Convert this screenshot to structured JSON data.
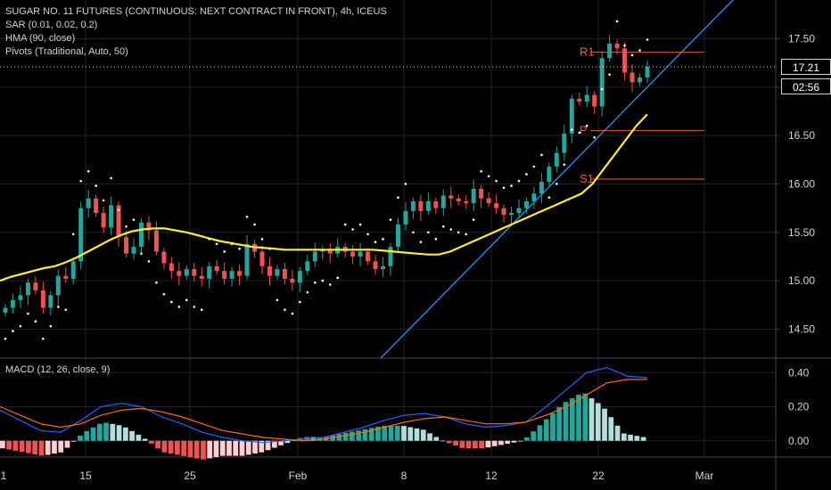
{
  "legend": {
    "title": "SUGAR NO. 11 FUTURES (CONTINUOUS: NEXT CONTRACT IN FRONT), 4h, ICEUS",
    "sar": "SAR (0.01, 0.02, 0.2)",
    "hma": "HMA (90, close)",
    "pivots": "Pivots (Traditional, Auto, 50)"
  },
  "macd_label": "MACD (12, 26, close, 9)",
  "price_axis_labels": [
    "17.50",
    "17.00",
    "16.50",
    "16.00",
    "15.50",
    "15.00",
    "14.50"
  ],
  "macd_axis_labels": [
    "0.40",
    "0.20",
    "0.00"
  ],
  "time_axis_labels": [
    "1",
    "15",
    "25",
    "Feb",
    "8",
    "12",
    "22",
    "Mar"
  ],
  "last_price": "17.21",
  "countdown": "02:56",
  "pivot_labels": [
    "R1",
    "P",
    "S1"
  ],
  "colors": {
    "up": "#26a69a",
    "down": "#ef5350",
    "hma": "#ffeb3b",
    "trendline": "#2196f3",
    "macd": "#2962ff",
    "signal": "#ff6d00",
    "pivot": "#e0633d"
  },
  "chart_data": {
    "type": "candlestick",
    "symbol": "SUGAR NO. 11 FUTURES (CONTINUOUS: NEXT CONTRACT IN FRONT)",
    "interval": "4h",
    "ylim": [
      14.2,
      17.9
    ],
    "y_ticks": [
      14.5,
      15.0,
      15.5,
      16.0,
      16.5,
      17.0,
      17.5
    ],
    "last_close": 17.21,
    "pivots": {
      "R1": 17.36,
      "P": 16.55,
      "S1": 16.05
    },
    "closes": [
      14.72,
      14.8,
      14.85,
      14.98,
      14.9,
      14.72,
      14.85,
      15.05,
      15.02,
      15.2,
      15.75,
      15.85,
      15.7,
      15.55,
      15.78,
      15.45,
      15.28,
      15.35,
      15.6,
      15.52,
      15.3,
      15.18,
      15.1,
      15.05,
      15.12,
      15.05,
      15.02,
      15.15,
      15.1,
      15.02,
      15.1,
      15.05,
      15.38,
      15.3,
      15.15,
      15.05,
      15.12,
      15.02,
      14.98,
      15.1,
      15.2,
      15.3,
      15.32,
      15.28,
      15.35,
      15.3,
      15.25,
      15.3,
      15.2,
      15.12,
      15.15,
      15.35,
      15.58,
      15.72,
      15.82,
      15.72,
      15.82,
      15.75,
      15.88,
      15.85,
      15.82,
      15.8,
      15.95,
      15.85,
      15.8,
      15.75,
      15.68,
      15.7,
      15.75,
      15.82,
      15.9,
      16.02,
      16.18,
      16.32,
      16.52,
      16.88,
      16.85,
      16.92,
      16.8,
      17.3,
      17.45,
      17.4,
      17.15,
      17.05,
      17.1,
      17.21
    ],
    "hma": [
      15,
      15.04,
      15.07,
      15.1,
      15.13,
      15.15,
      15.19,
      15.24,
      15.3,
      15.36,
      15.42,
      15.47,
      15.51,
      15.53,
      15.54,
      15.54,
      15.52,
      15.5,
      15.47,
      15.44,
      15.41,
      15.39,
      15.37,
      15.35,
      15.34,
      15.33,
      15.32,
      15.32,
      15.32,
      15.32,
      15.32,
      15.32,
      15.32,
      15.32,
      15.32,
      15.31,
      15.3,
      15.29,
      15.28,
      15.27,
      15.27,
      15.3,
      15.35,
      15.4,
      15.45,
      15.5,
      15.55,
      15.6,
      15.65,
      15.7,
      15.75,
      15.8,
      15.85,
      15.9,
      16.0,
      16.15,
      16.3,
      16.45,
      16.6,
      16.72
    ],
    "macd": {
      "macd_line": [
        0.18,
        0.12,
        0.06,
        0.05,
        0.12,
        0.2,
        0.22,
        0.2,
        0.14,
        0.1,
        0.05,
        0.02,
        0.0,
        -0.01,
        0.0,
        0.01,
        0.02,
        0.05,
        0.08,
        0.12,
        0.15,
        0.16,
        0.14,
        0.1,
        0.08,
        0.09,
        0.11,
        0.2,
        0.3,
        0.4,
        0.43,
        0.38,
        0.37
      ],
      "signal_line": [
        0.2,
        0.15,
        0.1,
        0.08,
        0.1,
        0.15,
        0.18,
        0.19,
        0.17,
        0.14,
        0.1,
        0.06,
        0.04,
        0.02,
        0.01,
        0.0,
        0.01,
        0.03,
        0.05,
        0.08,
        0.11,
        0.13,
        0.14,
        0.12,
        0.1,
        0.1,
        0.11,
        0.15,
        0.2,
        0.27,
        0.34,
        0.36,
        0.36
      ]
    }
  }
}
